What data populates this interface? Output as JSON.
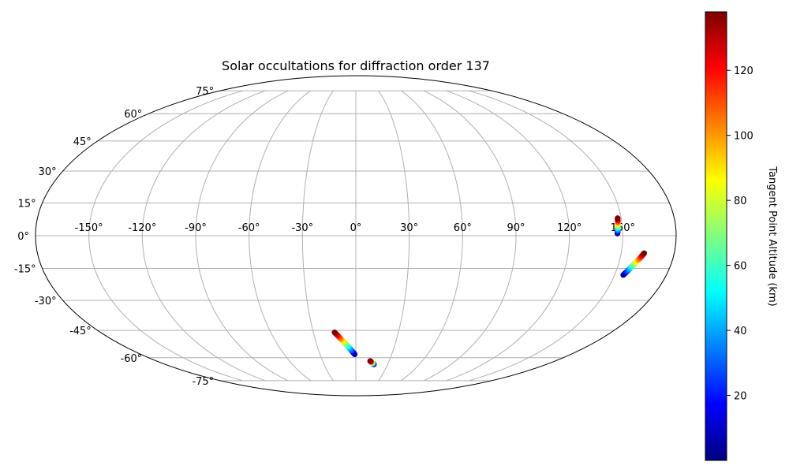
{
  "chart_data": {
    "type": "scatter",
    "projection": "mollweide",
    "title": "Solar occultations for diffraction order 137",
    "grid": true,
    "longitude_ticks": [
      -150,
      -120,
      -90,
      -60,
      -30,
      0,
      30,
      60,
      90,
      120,
      150
    ],
    "longitude_tick_labels": [
      "-150°",
      "-120°",
      "-90°",
      "-60°",
      "-30°",
      "0°",
      "30°",
      "60°",
      "90°",
      "120°",
      "150°"
    ],
    "latitude_ticks": [
      -75,
      -60,
      -45,
      -30,
      -15,
      0,
      15,
      30,
      45,
      60,
      75
    ],
    "latitude_tick_labels": [
      "-75°",
      "-60°",
      "-45°",
      "-30°",
      "-15°",
      "0°",
      "15°",
      "30°",
      "45°",
      "60°",
      "75°"
    ],
    "colorbar": {
      "label": "Tangent Point Altitude (km)",
      "colormap": "jet",
      "range": [
        0,
        138
      ],
      "ticks": [
        20,
        40,
        60,
        80,
        100,
        120
      ],
      "tick_labels": [
        "20",
        "40",
        "60",
        "80",
        "100",
        "120"
      ]
    },
    "series": [
      {
        "lon_start": -1,
        "lat_start": -58,
        "lon_end": -15,
        "lat_end": -46,
        "alt_start": 0,
        "alt_end": 138
      },
      {
        "lon_start": 17,
        "lat_start": -64,
        "lon_end": 13,
        "lat_end": -62,
        "alt_start": 0,
        "alt_end": 138
      },
      {
        "lon_start": 147,
        "lat_start": 1,
        "lon_end": 148,
        "lat_end": 8,
        "alt_start": 0,
        "alt_end": 138
      },
      {
        "lon_start": 155,
        "lat_start": -18,
        "lon_end": 163,
        "lat_end": -8,
        "alt_start": 0,
        "alt_end": 138
      }
    ]
  }
}
